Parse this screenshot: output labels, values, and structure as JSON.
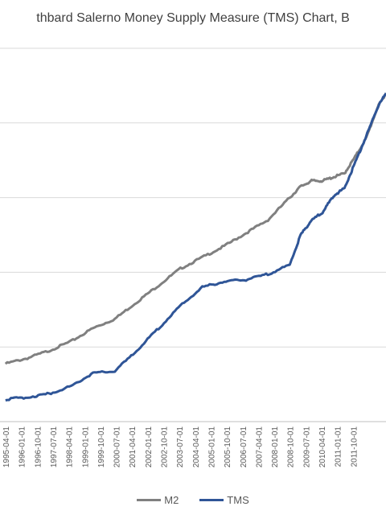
{
  "chart_data": {
    "type": "line",
    "title": "thbard Salerno Money Supply Measure (TMS) Chart, B",
    "xlabel": "",
    "ylabel": "",
    "grid": true,
    "legend_position": "bottom",
    "tick_labels": [
      "1995-04-01",
      "1996-01-01",
      "1996-10-01",
      "1997-07-01",
      "1998-04-01",
      "1999-01-01",
      "1999-10-01",
      "2000-07-01",
      "2001-04-01",
      "2002-01-01",
      "2002-10-01",
      "2003-07-01",
      "2004-04-01",
      "2005-01-01",
      "2005-10-01",
      "2006-07-01",
      "2007-04-01",
      "2008-01-01",
      "2008-10-01",
      "2009-07-01",
      "2010-04-01",
      "2011-01-01",
      "2011-10-01"
    ],
    "x": [
      1995.0,
      1996.0,
      1997.0,
      1998.0,
      1999.0,
      2000.0,
      2001.0,
      2002.0,
      2003.0,
      2004.0,
      2005.0,
      2006.0,
      2007.0,
      2008.0,
      2008.5,
      2009.0,
      2009.5,
      2010.0,
      2010.5,
      2011.0,
      2011.5,
      2012.0,
      2012.4
    ],
    "series": [
      {
        "name": "M2",
        "color": "#808080",
        "values": [
          3.55,
          3.7,
          3.9,
          4.15,
          4.5,
          4.75,
          5.2,
          5.65,
          6.1,
          6.4,
          6.7,
          7.05,
          7.4,
          8.0,
          8.3,
          8.45,
          8.45,
          8.55,
          8.65,
          9.1,
          9.6,
          10.4,
          10.8
        ]
      },
      {
        "name": "TMS",
        "color": "#2F5597",
        "values": [
          2.6,
          2.65,
          2.75,
          2.95,
          3.3,
          3.35,
          3.9,
          4.5,
          5.1,
          5.6,
          5.75,
          5.8,
          5.95,
          6.2,
          7.0,
          7.4,
          7.6,
          8.05,
          8.25,
          8.95,
          9.65,
          10.4,
          10.8
        ]
      }
    ]
  }
}
